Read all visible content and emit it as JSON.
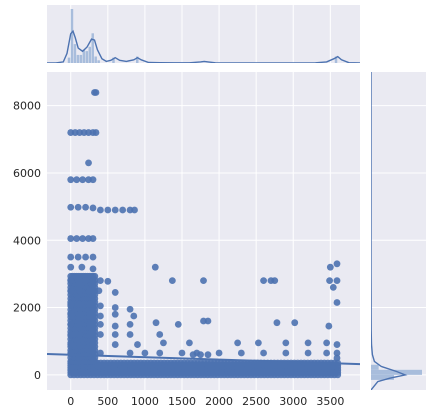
{
  "chart_data": {
    "type": "scatter",
    "title": "",
    "xlabel": "",
    "ylabel": "",
    "xlim": [
      -320,
      3900
    ],
    "ylim": [
      -450,
      9000
    ],
    "grid": true,
    "x_ticks": [
      0,
      500,
      1000,
      1500,
      2000,
      2500,
      3000,
      3500
    ],
    "y_ticks": [
      0,
      2000,
      4000,
      6000,
      8000
    ],
    "x_tick_labels": [
      "0",
      "500",
      "1000",
      "1500",
      "2000",
      "2500",
      "3000",
      "3500"
    ],
    "y_tick_labels": [
      "0",
      "2000",
      "4000",
      "6000",
      "8000"
    ],
    "colors": {
      "background": "#eaeaf2",
      "grid": "#ffffff",
      "points": "#4c72b0",
      "hist_bar": "#a8bddc"
    },
    "regression_line": {
      "x": [
        -320,
        3900
      ],
      "y": [
        620,
        320
      ]
    },
    "points": [
      [
        320,
        8390
      ],
      [
        340,
        8390
      ],
      [
        0,
        7200
      ],
      [
        60,
        7200
      ],
      [
        120,
        7200
      ],
      [
        180,
        7200
      ],
      [
        240,
        7200
      ],
      [
        300,
        7200
      ],
      [
        340,
        7200
      ],
      [
        240,
        6300
      ],
      [
        0,
        5800
      ],
      [
        80,
        5800
      ],
      [
        160,
        5800
      ],
      [
        240,
        5800
      ],
      [
        300,
        5800
      ],
      [
        0,
        4980
      ],
      [
        100,
        4980
      ],
      [
        200,
        4980
      ],
      [
        300,
        4960
      ],
      [
        400,
        4900
      ],
      [
        500,
        4900
      ],
      [
        600,
        4900
      ],
      [
        700,
        4900
      ],
      [
        800,
        4900
      ],
      [
        860,
        4900
      ],
      [
        0,
        4050
      ],
      [
        80,
        4050
      ],
      [
        160,
        4050
      ],
      [
        240,
        4050
      ],
      [
        300,
        4050
      ],
      [
        0,
        3500
      ],
      [
        100,
        3500
      ],
      [
        200,
        3500
      ],
      [
        300,
        3500
      ],
      [
        0,
        3200
      ],
      [
        150,
        3200
      ],
      [
        300,
        3150
      ],
      [
        1140,
        3200
      ],
      [
        3500,
        3200
      ],
      [
        3590,
        3300
      ],
      [
        0,
        2800
      ],
      [
        200,
        2800
      ],
      [
        300,
        2800
      ],
      [
        400,
        2800
      ],
      [
        500,
        2780
      ],
      [
        1370,
        2800
      ],
      [
        1790,
        2800
      ],
      [
        2600,
        2800
      ],
      [
        2700,
        2800
      ],
      [
        2750,
        2800
      ],
      [
        3490,
        2800
      ],
      [
        3590,
        2800
      ],
      [
        0,
        2500
      ],
      [
        120,
        2500
      ],
      [
        250,
        2500
      ],
      [
        380,
        2500
      ],
      [
        600,
        2450
      ],
      [
        3540,
        2600
      ],
      [
        0,
        2100
      ],
      [
        120,
        2100
      ],
      [
        260,
        2100
      ],
      [
        400,
        2050
      ],
      [
        600,
        2000
      ],
      [
        800,
        1950
      ],
      [
        3590,
        2150
      ],
      [
        0,
        1800
      ],
      [
        120,
        1800
      ],
      [
        260,
        1800
      ],
      [
        400,
        1750
      ],
      [
        600,
        1800
      ],
      [
        850,
        1750
      ],
      [
        0,
        1500
      ],
      [
        120,
        1500
      ],
      [
        260,
        1500
      ],
      [
        400,
        1500
      ],
      [
        600,
        1450
      ],
      [
        800,
        1500
      ],
      [
        1150,
        1550
      ],
      [
        1790,
        1600
      ],
      [
        1850,
        1600
      ],
      [
        2780,
        1550
      ],
      [
        3020,
        1550
      ],
      [
        0,
        1200
      ],
      [
        120,
        1200
      ],
      [
        260,
        1200
      ],
      [
        400,
        1200
      ],
      [
        600,
        1200
      ],
      [
        800,
        1200
      ],
      [
        1200,
        1200
      ],
      [
        1450,
        1500
      ],
      [
        3480,
        1450
      ],
      [
        0,
        900
      ],
      [
        300,
        900
      ],
      [
        600,
        900
      ],
      [
        900,
        900
      ],
      [
        1250,
        950
      ],
      [
        1600,
        950
      ],
      [
        2250,
        950
      ],
      [
        2530,
        950
      ],
      [
        2900,
        950
      ],
      [
        3200,
        950
      ],
      [
        3450,
        950
      ],
      [
        3590,
        900
      ],
      [
        0,
        650
      ],
      [
        400,
        650
      ],
      [
        800,
        650
      ],
      [
        1000,
        650
      ],
      [
        1200,
        650
      ],
      [
        1500,
        650
      ],
      [
        1700,
        650
      ],
      [
        2000,
        650
      ],
      [
        2300,
        650
      ],
      [
        2600,
        650
      ],
      [
        2900,
        650
      ],
      [
        3200,
        650
      ],
      [
        3450,
        650
      ],
      [
        3590,
        650
      ],
      [
        1750,
        600
      ],
      [
        1650,
        600
      ],
      [
        1850,
        600
      ],
      [
        3590,
        500
      ]
    ]
  },
  "top_marginal": {
    "kde_x": [
      -350,
      -200,
      -100,
      -50,
      0,
      30,
      60,
      100,
      160,
      220,
      280,
      320,
      360,
      420,
      480,
      540,
      600,
      660,
      750,
      850,
      900,
      950,
      1050,
      1200,
      1400,
      1600,
      1750,
      1800,
      1850,
      1950,
      2200,
      2600,
      3000,
      3300,
      3450,
      3550,
      3600,
      3650,
      3750,
      3900
    ],
    "kde_y": [
      0.0,
      0.002,
      0.02,
      0.18,
      0.55,
      0.6,
      0.48,
      0.28,
      0.22,
      0.3,
      0.45,
      0.43,
      0.25,
      0.08,
      0.03,
      0.05,
      0.1,
      0.05,
      0.03,
      0.06,
      0.1,
      0.06,
      0.01,
      0.005,
      0.004,
      0.004,
      0.02,
      0.03,
      0.02,
      0.003,
      0.002,
      0.002,
      0.002,
      0.004,
      0.02,
      0.08,
      0.12,
      0.06,
      0.005,
      0.0
    ],
    "bars": [
      [
        -40,
        0.1
      ],
      [
        0,
        1.0
      ],
      [
        40,
        0.35
      ],
      [
        80,
        0.15
      ],
      [
        120,
        0.15
      ],
      [
        160,
        0.25
      ],
      [
        200,
        0.22
      ],
      [
        240,
        0.3
      ],
      [
        280,
        0.55
      ],
      [
        320,
        0.12
      ],
      [
        360,
        0.05
      ],
      [
        560,
        0.1
      ],
      [
        880,
        0.12
      ],
      [
        3560,
        0.12
      ]
    ]
  },
  "right_marginal": {
    "kde_y": [
      -450,
      -200,
      -100,
      0,
      100,
      250,
      400,
      600,
      900,
      1300,
      1800,
      2300,
      3000,
      4000,
      5000,
      7200,
      9000
    ],
    "kde_x": [
      0.0,
      0.2,
      0.55,
      1.0,
      0.75,
      0.3,
      0.1,
      0.04,
      0.015,
      0.006,
      0.003,
      0.002,
      0.001,
      0.001,
      0.001,
      0.0005,
      0.0
    ],
    "bars": [
      [
        -150,
        0.45
      ],
      [
        0,
        1.0
      ],
      [
        150,
        0.15
      ]
    ]
  }
}
